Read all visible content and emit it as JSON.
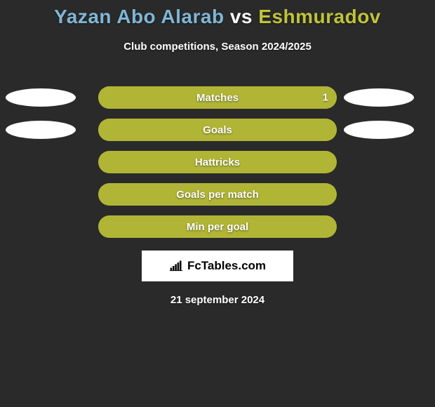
{
  "title_left": "Yazan Abo Alarab",
  "title_vs": "vs",
  "title_right": "Eshmuradov",
  "title_left_color": "#7fb6d6",
  "title_vs_color": "#ffffff",
  "title_right_color": "#c0c339",
  "subtitle": "Club competitions, Season 2024/2025",
  "rows": [
    {
      "label": "Matches",
      "right_value": "1",
      "bar_bg": "#808080",
      "fill_color": "#b1b536",
      "fill_pct": 100,
      "left_ellipse": true,
      "right_ellipse": true
    },
    {
      "label": "Goals",
      "right_value": "",
      "bar_bg": "#808080",
      "fill_color": "#b1b536",
      "fill_pct": 100,
      "left_ellipse": true,
      "right_ellipse": true
    },
    {
      "label": "Hattricks",
      "right_value": "",
      "bar_bg": "#b1b536",
      "fill_color": "#b1b536",
      "fill_pct": 100,
      "left_ellipse": false,
      "right_ellipse": false
    },
    {
      "label": "Goals per match",
      "right_value": "",
      "bar_bg": "#b1b536",
      "fill_color": "#b1b536",
      "fill_pct": 100,
      "left_ellipse": false,
      "right_ellipse": false
    },
    {
      "label": "Min per goal",
      "right_value": "",
      "bar_bg": "#b1b536",
      "fill_color": "#b1b536",
      "fill_pct": 100,
      "left_ellipse": false,
      "right_ellipse": false
    }
  ],
  "logo_text": "FcTables.com",
  "date_text": "21 september 2024",
  "background_color": "#2a2a2a",
  "ellipse_color": "#ffffff"
}
